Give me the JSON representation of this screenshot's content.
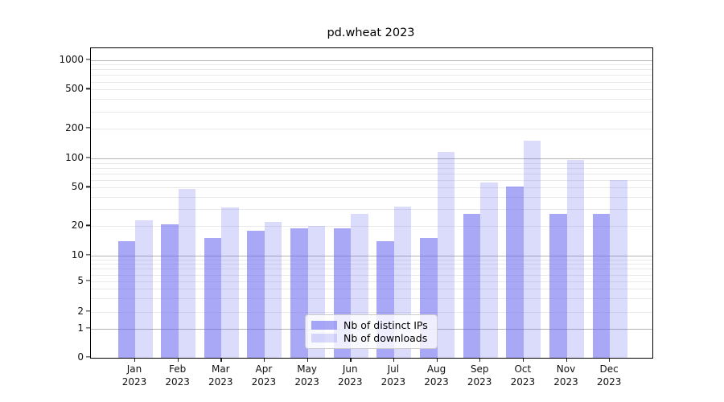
{
  "page": {
    "background": "#ffffff"
  },
  "chart_data": {
    "type": "bar",
    "title": "pd.wheat 2023",
    "categories": [
      "Jan",
      "Feb",
      "Mar",
      "Apr",
      "May",
      "Jun",
      "Jul",
      "Aug",
      "Sep",
      "Oct",
      "Nov",
      "Dec"
    ],
    "category_year": "2023",
    "series": [
      {
        "name": "Nb of distinct IPs",
        "values": [
          14,
          21,
          15,
          18,
          19,
          19,
          14,
          15,
          27,
          51,
          27,
          27
        ],
        "color_hex": "#a8a8f7",
        "fill": "rgba(100,100,240,0.56)"
      },
      {
        "name": "Nb of downloads",
        "values": [
          23,
          48,
          31,
          22,
          20,
          27,
          32,
          117,
          56,
          152,
          96,
          60
        ],
        "color_hex": "#dbdbfa",
        "fill": "rgba(100,100,240,0.23)"
      }
    ],
    "yscale": "symlog",
    "ylim": [
      0,
      1340
    ],
    "yticks": [
      1000,
      500,
      200,
      100,
      50,
      20,
      10,
      5,
      2,
      1,
      0
    ],
    "grid": {
      "major_color": "#b4b4b4",
      "minor_color": "#e9e9e9",
      "major_at": [
        1,
        10,
        100,
        1000
      ],
      "minor_at": [
        2,
        3,
        4,
        5,
        6,
        7,
        8,
        9,
        20,
        30,
        40,
        50,
        60,
        70,
        80,
        90,
        200,
        300,
        400,
        500,
        600,
        700,
        800,
        900
      ]
    },
    "legend": {
      "position": "lower center",
      "entries": [
        "Nb of distinct IPs",
        "Nb of downloads"
      ]
    }
  }
}
